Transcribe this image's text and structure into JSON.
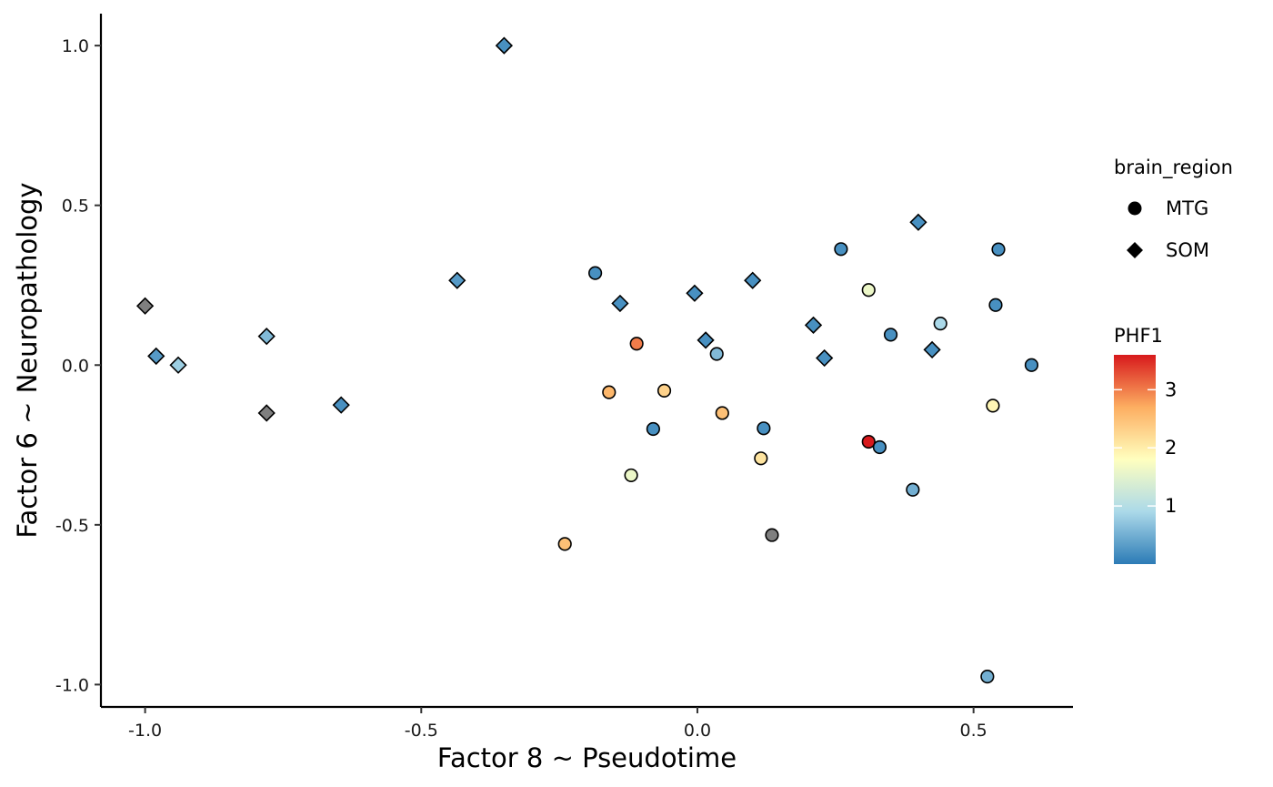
{
  "chart_data": {
    "type": "scatter",
    "xlabel": "Factor 8 ~ Pseudotime",
    "ylabel": "Factor 6 ~ Neuropathology",
    "xlim": [
      -1.08,
      0.68
    ],
    "ylim": [
      -1.07,
      1.1
    ],
    "x_ticks": [
      {
        "value": -1.0,
        "label": "-1.0"
      },
      {
        "value": -0.5,
        "label": "-0.5"
      },
      {
        "value": 0.0,
        "label": "0.0"
      },
      {
        "value": 0.5,
        "label": "0.5"
      }
    ],
    "y_ticks": [
      {
        "value": -1.0,
        "label": "-1.0"
      },
      {
        "value": -0.5,
        "label": "-0.5"
      },
      {
        "value": 0.0,
        "label": "0.0"
      },
      {
        "value": 0.5,
        "label": "0.5"
      },
      {
        "value": 1.0,
        "label": "1.0"
      }
    ],
    "shape_legend": {
      "title": "brain_region",
      "entries": [
        {
          "label": "MTG",
          "shape": "circle"
        },
        {
          "label": "SOM",
          "shape": "diamond"
        }
      ]
    },
    "color_legend": {
      "title": "PHF1",
      "range": [
        0,
        3.6
      ],
      "ticks": [
        {
          "value": 1,
          "label": "1"
        },
        {
          "value": 2,
          "label": "2"
        },
        {
          "value": 3,
          "label": "3"
        }
      ],
      "palette": [
        "#2c7bb6",
        "#abd9e9",
        "#ffffbf",
        "#fdae61",
        "#d7191c"
      ],
      "na_color": "#7f7f7f"
    },
    "grid": false,
    "legend_position": "right",
    "points": [
      {
        "x": -0.35,
        "y": 1.0,
        "region": "SOM",
        "phf1": 0.2
      },
      {
        "x": -1.0,
        "y": 0.185,
        "region": "SOM",
        "phf1": null
      },
      {
        "x": -0.98,
        "y": 0.028,
        "region": "SOM",
        "phf1": 0.3
      },
      {
        "x": -0.94,
        "y": 0.0,
        "region": "SOM",
        "phf1": 0.8
      },
      {
        "x": -0.78,
        "y": 0.09,
        "region": "SOM",
        "phf1": 0.6
      },
      {
        "x": -0.78,
        "y": -0.15,
        "region": "SOM",
        "phf1": null
      },
      {
        "x": -0.645,
        "y": -0.125,
        "region": "SOM",
        "phf1": 0.2
      },
      {
        "x": -0.435,
        "y": 0.265,
        "region": "SOM",
        "phf1": 0.3
      },
      {
        "x": -0.14,
        "y": 0.193,
        "region": "SOM",
        "phf1": 0.2
      },
      {
        "x": -0.005,
        "y": 0.225,
        "region": "SOM",
        "phf1": 0.2
      },
      {
        "x": 0.015,
        "y": 0.078,
        "region": "SOM",
        "phf1": 0.2
      },
      {
        "x": 0.1,
        "y": 0.265,
        "region": "SOM",
        "phf1": 0.2
      },
      {
        "x": 0.21,
        "y": 0.125,
        "region": "SOM",
        "phf1": 0.2
      },
      {
        "x": 0.23,
        "y": 0.022,
        "region": "SOM",
        "phf1": 0.2
      },
      {
        "x": 0.4,
        "y": 0.447,
        "region": "SOM",
        "phf1": 0.2
      },
      {
        "x": 0.425,
        "y": 0.048,
        "region": "SOM",
        "phf1": 0.2
      },
      {
        "x": -0.185,
        "y": 0.288,
        "region": "MTG",
        "phf1": 0.2
      },
      {
        "x": -0.11,
        "y": 0.067,
        "region": "MTG",
        "phf1": 3.0
      },
      {
        "x": -0.16,
        "y": -0.085,
        "region": "MTG",
        "phf1": 2.6
      },
      {
        "x": -0.06,
        "y": -0.08,
        "region": "MTG",
        "phf1": 2.3
      },
      {
        "x": -0.08,
        "y": -0.2,
        "region": "MTG",
        "phf1": 0.2
      },
      {
        "x": -0.12,
        "y": -0.345,
        "region": "MTG",
        "phf1": 1.6
      },
      {
        "x": -0.24,
        "y": -0.56,
        "region": "MTG",
        "phf1": 2.5
      },
      {
        "x": 0.035,
        "y": 0.035,
        "region": "MTG",
        "phf1": 0.6
      },
      {
        "x": 0.045,
        "y": -0.15,
        "region": "MTG",
        "phf1": 2.5
      },
      {
        "x": 0.12,
        "y": -0.198,
        "region": "MTG",
        "phf1": 0.2
      },
      {
        "x": 0.115,
        "y": -0.292,
        "region": "MTG",
        "phf1": 2.1
      },
      {
        "x": 0.135,
        "y": -0.532,
        "region": "MTG",
        "phf1": null
      },
      {
        "x": 0.26,
        "y": 0.363,
        "region": "MTG",
        "phf1": 0.2
      },
      {
        "x": 0.31,
        "y": 0.235,
        "region": "MTG",
        "phf1": 1.6
      },
      {
        "x": 0.31,
        "y": -0.24,
        "region": "MTG",
        "phf1": 3.6
      },
      {
        "x": 0.33,
        "y": -0.257,
        "region": "MTG",
        "phf1": 0.2
      },
      {
        "x": 0.35,
        "y": 0.095,
        "region": "MTG",
        "phf1": 0.2
      },
      {
        "x": 0.39,
        "y": -0.39,
        "region": "MTG",
        "phf1": 0.5
      },
      {
        "x": 0.44,
        "y": 0.13,
        "region": "MTG",
        "phf1": 0.9
      },
      {
        "x": 0.545,
        "y": 0.362,
        "region": "MTG",
        "phf1": 0.2
      },
      {
        "x": 0.54,
        "y": 0.188,
        "region": "MTG",
        "phf1": 0.2
      },
      {
        "x": 0.605,
        "y": 0.0,
        "region": "MTG",
        "phf1": 0.2
      },
      {
        "x": 0.535,
        "y": -0.127,
        "region": "MTG",
        "phf1": 1.9
      },
      {
        "x": 0.525,
        "y": -0.975,
        "region": "MTG",
        "phf1": 0.5
      }
    ]
  }
}
